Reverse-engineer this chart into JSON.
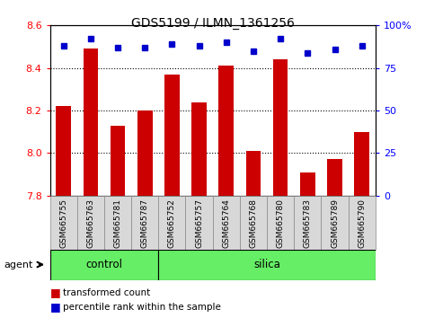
{
  "title": "GDS5199 / ILMN_1361256",
  "samples": [
    "GSM665755",
    "GSM665763",
    "GSM665781",
    "GSM665787",
    "GSM665752",
    "GSM665757",
    "GSM665764",
    "GSM665768",
    "GSM665780",
    "GSM665783",
    "GSM665789",
    "GSM665790"
  ],
  "bar_values": [
    8.22,
    8.49,
    8.13,
    8.2,
    8.37,
    8.24,
    8.41,
    8.01,
    8.44,
    7.91,
    7.97,
    8.1
  ],
  "percentile_values": [
    88,
    92,
    87,
    87,
    89,
    88,
    90,
    85,
    92,
    84,
    86,
    88
  ],
  "groups": [
    {
      "label": "control",
      "start": 0,
      "end": 4
    },
    {
      "label": "silica",
      "start": 4,
      "end": 12
    }
  ],
  "agent_label": "agent",
  "ylim": [
    7.8,
    8.6
  ],
  "yticks": [
    7.8,
    8.0,
    8.2,
    8.4,
    8.6
  ],
  "y2lim": [
    0,
    100
  ],
  "y2ticks": [
    0,
    25,
    50,
    75,
    100
  ],
  "y2ticklabels": [
    "0",
    "25",
    "50",
    "75",
    "100%"
  ],
  "bar_color": "#cc0000",
  "dot_color": "#0000cc",
  "bar_width": 0.55,
  "grid_color": "black",
  "bg_color": "#d8d8d8",
  "plot_bg_color": "#ffffff",
  "green_color": "#66ee66",
  "legend_items": [
    {
      "label": "transformed count",
      "color": "#cc0000"
    },
    {
      "label": "percentile rank within the sample",
      "color": "#0000cc"
    }
  ]
}
